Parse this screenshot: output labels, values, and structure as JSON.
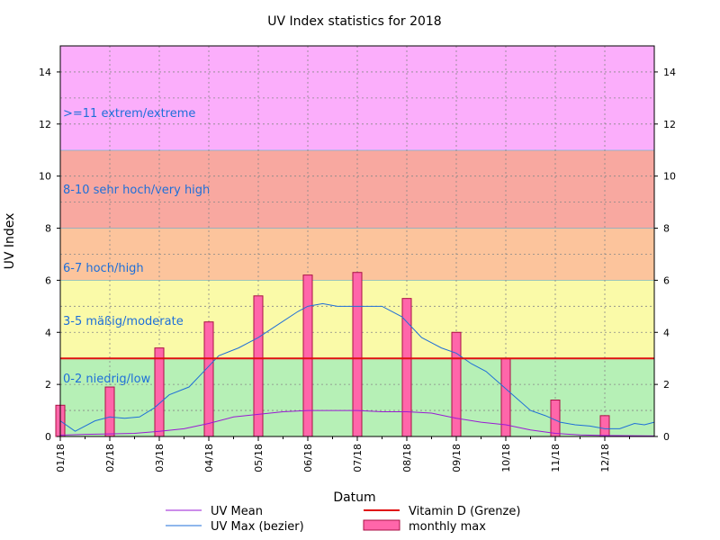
{
  "chart_data": {
    "type": "bar",
    "title": "UV Index statistics for 2018",
    "xlabel": "Datum",
    "ylabel": "UV Index",
    "ylim": [
      0,
      15
    ],
    "yticks": [
      0,
      2,
      4,
      6,
      8,
      10,
      12,
      14
    ],
    "grid": true,
    "legend_position": "bottom",
    "categories": [
      "01/18",
      "02/18",
      "03/18",
      "04/18",
      "05/18",
      "06/18",
      "07/18",
      "08/18",
      "09/18",
      "10/18",
      "11/18",
      "12/18"
    ],
    "bands": [
      {
        "label": "0-2 niedrig/low",
        "from": 0,
        "to": 3,
        "color": "#b6f0b6"
      },
      {
        "label": "3-5 mäßig/moderate",
        "from": 3,
        "to": 6,
        "color": "#fafaa8"
      },
      {
        "label": "6-7 hoch/high",
        "from": 6,
        "to": 8,
        "color": "#fcc49c"
      },
      {
        "label": "8-10 sehr hoch/very high",
        "from": 8,
        "to": 11,
        "color": "#f8a8a0"
      },
      {
        "label": ">=11 extrem/extreme",
        "from": 11,
        "to": 15,
        "color": "#fbaefb"
      }
    ],
    "series": [
      {
        "name": "monthly max",
        "kind": "bar",
        "color": "#ff66aa",
        "values": [
          1.2,
          1.9,
          3.4,
          4.4,
          5.4,
          6.2,
          6.3,
          5.3,
          4.0,
          3.0,
          1.4,
          0.8
        ]
      },
      {
        "name": "UV Max (bezier)",
        "kind": "line",
        "color": "#1f6fd8",
        "x": [
          0,
          0.3,
          0.7,
          1.0,
          1.3,
          1.6,
          1.9,
          2.2,
          2.6,
          2.9,
          3.2,
          3.6,
          4.0,
          4.4,
          4.8,
          5.0,
          5.3,
          5.6,
          5.9,
          6.2,
          6.5,
          6.9,
          7.3,
          7.7,
          8.0,
          8.3,
          8.6,
          8.9,
          9.2,
          9.5,
          9.8,
          10.1,
          10.4,
          10.7,
          11.0,
          11.3,
          11.6,
          11.8,
          12.0
        ],
        "values": [
          0.6,
          0.2,
          0.6,
          0.75,
          0.7,
          0.75,
          1.1,
          1.6,
          1.9,
          2.5,
          3.1,
          3.4,
          3.8,
          4.3,
          4.8,
          5.0,
          5.1,
          5.0,
          5.0,
          5.0,
          5.0,
          4.6,
          3.8,
          3.4,
          3.2,
          2.8,
          2.5,
          2.0,
          1.5,
          1.0,
          0.8,
          0.55,
          0.45,
          0.4,
          0.3,
          0.3,
          0.5,
          0.45,
          0.55
        ]
      },
      {
        "name": "UV Mean",
        "kind": "line",
        "color": "#9a1ad4",
        "x": [
          0,
          0.5,
          1.0,
          1.5,
          2.0,
          2.5,
          3.0,
          3.5,
          4.0,
          4.5,
          5.0,
          5.5,
          6.0,
          6.5,
          7.0,
          7.5,
          8.0,
          8.5,
          9.0,
          9.5,
          10.0,
          10.5,
          11.0,
          11.5,
          12.0
        ],
        "values": [
          0.05,
          0.08,
          0.1,
          0.12,
          0.2,
          0.3,
          0.5,
          0.75,
          0.85,
          0.95,
          1.0,
          1.0,
          1.0,
          0.95,
          0.95,
          0.9,
          0.7,
          0.55,
          0.45,
          0.25,
          0.12,
          0.06,
          0.04,
          0.03,
          0.02
        ]
      },
      {
        "name": "Vitamin D (Grenze)",
        "kind": "hline",
        "color": "#e01010",
        "value": 3
      }
    ]
  }
}
